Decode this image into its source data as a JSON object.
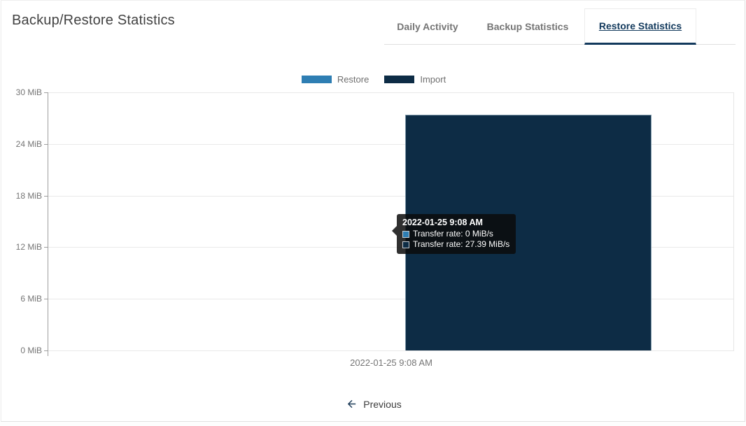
{
  "header": {
    "title": "Backup/Restore Statistics"
  },
  "tabs": [
    {
      "label": "Daily Activity",
      "active": false
    },
    {
      "label": "Backup Statistics",
      "active": false
    },
    {
      "label": "Restore Statistics",
      "active": true
    }
  ],
  "chart_data": {
    "type": "bar",
    "title": "",
    "categories": [
      "2022-01-25 9:08 AM"
    ],
    "series": [
      {
        "name": "Restore",
        "values": [
          0
        ],
        "color": "#2e7eb3"
      },
      {
        "name": "Import",
        "values": [
          27.39
        ],
        "color": "#0d2c45"
      }
    ],
    "xlabel": "",
    "ylabel": "",
    "ylim": [
      0,
      30
    ],
    "ytick_labels": [
      "30 MiB",
      "24 MiB",
      "18 MiB",
      "12 MiB",
      "6 MiB",
      "0 MiB"
    ],
    "grid": true,
    "legend_position": "top",
    "units": "MiB/s"
  },
  "tooltip": {
    "title": "2022-01-25 9:08 AM",
    "rows": [
      {
        "label": "Transfer rate: 0 MiB/s",
        "color": "#2e7eb3"
      },
      {
        "label": "Transfer rate: 27.39 MiB/s",
        "color": "#0d2c45"
      }
    ]
  },
  "footer": {
    "previous_label": "Previous"
  },
  "colors": {
    "accent": "#12395c",
    "restore": "#2e7eb3",
    "import": "#0d2c45",
    "arrow": "#1b3a57"
  }
}
